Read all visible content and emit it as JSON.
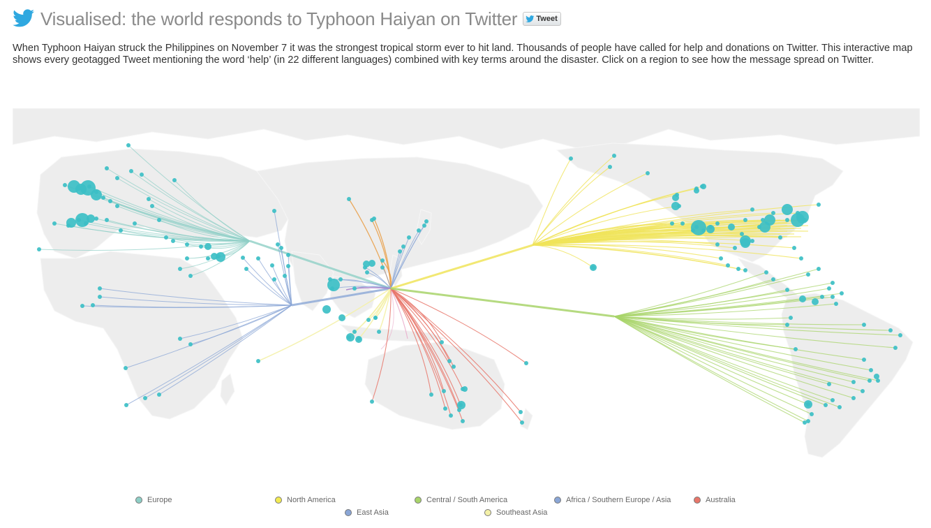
{
  "header": {
    "title": "Visualised: the world responds to Typhoon Haiyan on Twitter",
    "tweet_button": "Tweet",
    "logo_icon": "twitter-bird-icon"
  },
  "intro": "When Typhoon Haiyan struck the Philippines on November 7 it was the strongest tropical storm ever to hit land. Thousands of people have called for help and donations on Twitter. This interactive map shows every geotagged Tweet mentioning the word ‘help’ (in 22 different languages) combined with key terms around the disaster. Click on a region to see how the message spread on Twitter.",
  "colors": {
    "dot": "#3cbfc6",
    "land": "#ededed",
    "europe": "#8ecfc6",
    "north_america": "#f0e45a",
    "central_south_america": "#a8d46a",
    "africa_southern_europe_asia": "#8aa6d6",
    "australia": "#e8766a",
    "east_asia": "#e9a04a",
    "southeast_asia": "#f4f1a8",
    "pink": "#e9a8c8",
    "purple": "#a57bc9"
  },
  "legend": [
    {
      "label": "Europe",
      "color": "#8ecfc6"
    },
    {
      "label": "North America",
      "color": "#f2ea52"
    },
    {
      "label": "Central / South America",
      "color": "#a8d46a"
    },
    {
      "label": "Africa / Southern Europe / Asia",
      "color": "#8aa6d6"
    },
    {
      "label": "Australia",
      "color": "#e8766a"
    },
    {
      "label": "East Asia",
      "color": "#8aa6d6"
    },
    {
      "label": "Southeast Asia",
      "color": "#f4f1a8"
    }
  ]
}
